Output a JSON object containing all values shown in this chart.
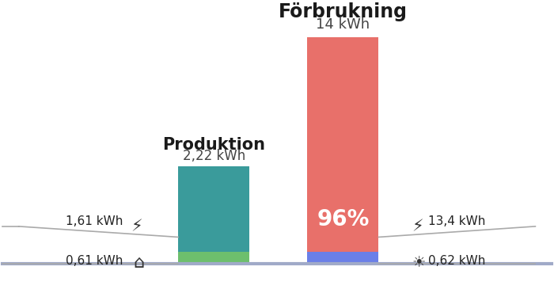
{
  "background_color": "#ffffff",
  "bar_colors": {
    "produktion_teal": "#3a9b9b",
    "produktion_green": "#6dbf6d",
    "forbrukning_red": "#e8706a",
    "forbrukning_blue": "#6a7fe8",
    "baseline": "#a0aac8"
  },
  "produktion_label": "Produktion",
  "produktion_value": "2,22 kWh",
  "forbrukning_label": "Förbrukning",
  "forbrukning_value": "14 kWh",
  "net_import_pct": "96%",
  "left_top_value": "1,61 kWh",
  "left_bottom_value": "0,61 kWh",
  "right_top_value": "13,4 kWh",
  "right_bottom_value": "0,62 kWh"
}
